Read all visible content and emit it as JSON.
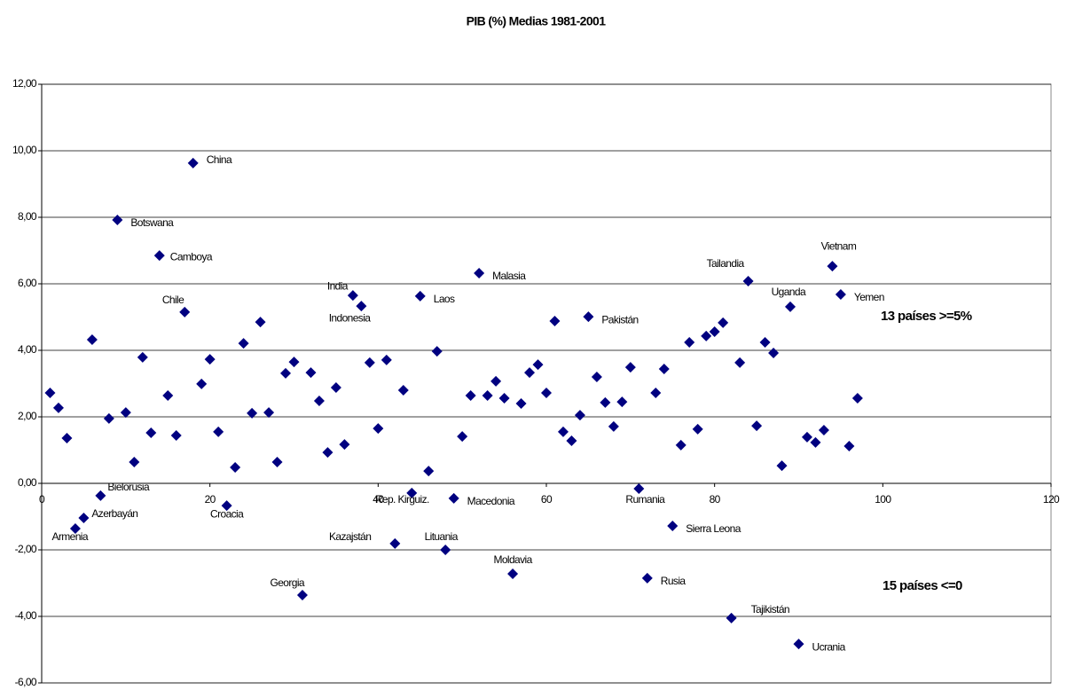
{
  "chart_data": {
    "type": "scatter",
    "title": "PIB (%) Medias 1981-2001",
    "color": "#000080",
    "grid": true,
    "xlim": [
      0,
      120
    ],
    "xticks": [
      0,
      20,
      40,
      60,
      80,
      100,
      120
    ],
    "ylim": [
      -6,
      12
    ],
    "yticks": [
      {
        "value": -6,
        "label": "-6,00"
      },
      {
        "value": -4,
        "label": "-4,00"
      },
      {
        "value": -2,
        "label": "-2,00"
      },
      {
        "value": 0,
        "label": "0,00"
      },
      {
        "value": 2,
        "label": "2,00"
      },
      {
        "value": 4,
        "label": "4,00"
      },
      {
        "value": 6,
        "label": "6,00"
      },
      {
        "value": 8,
        "label": "8,00"
      },
      {
        "value": 10,
        "label": "10,00"
      },
      {
        "value": 12,
        "label": "12,00"
      }
    ],
    "x": [
      1,
      2,
      3,
      4,
      5,
      6,
      7,
      8,
      9,
      10,
      11,
      12,
      13,
      14,
      15,
      16,
      17,
      18,
      19,
      20,
      21,
      22,
      23,
      24,
      25,
      26,
      27,
      28,
      29,
      30,
      31,
      32,
      33,
      34,
      35,
      36,
      37,
      38,
      39,
      40,
      41,
      42,
      43,
      44,
      45,
      46,
      47,
      48,
      49,
      50,
      51,
      52,
      53,
      54,
      55,
      56,
      57,
      58,
      59,
      60,
      61,
      62,
      63,
      64,
      65,
      66,
      67,
      68,
      69,
      70,
      71,
      72,
      73,
      74,
      75,
      76,
      77,
      78,
      79,
      80,
      81,
      82,
      83,
      84,
      85,
      86,
      87,
      88,
      89,
      90,
      91,
      92,
      93,
      94,
      95,
      96,
      97
    ],
    "values": [
      2.72,
      2.27,
      1.36,
      -1.36,
      -1.04,
      4.32,
      -0.37,
      1.95,
      7.92,
      2.13,
      0.64,
      3.79,
      1.52,
      6.85,
      2.64,
      1.44,
      5.15,
      9.63,
      2.99,
      3.73,
      1.55,
      -0.67,
      0.48,
      4.21,
      2.11,
      4.85,
      2.13,
      0.64,
      3.31,
      3.65,
      -3.36,
      3.33,
      2.48,
      0.93,
      2.88,
      1.17,
      5.65,
      5.33,
      3.63,
      1.65,
      3.71,
      -1.81,
      2.8,
      -0.29,
      5.63,
      0.37,
      3.97,
      -2.0,
      -0.45,
      1.41,
      2.64,
      6.32,
      2.64,
      3.07,
      2.56,
      -2.72,
      2.4,
      3.33,
      3.57,
      2.72,
      4.88,
      1.55,
      1.28,
      2.05,
      5.01,
      3.2,
      2.43,
      1.71,
      2.45,
      3.49,
      -0.16,
      -2.85,
      2.72,
      3.44,
      -1.28,
      1.15,
      4.24,
      1.63,
      4.43,
      4.56,
      4.83,
      -4.05,
      3.63,
      6.08,
      1.73,
      4.24,
      3.92,
      0.53,
      5.31,
      -4.83,
      1.39,
      1.23,
      1.6,
      6.53,
      5.68,
      1.12,
      2.56
    ],
    "point_labels": [
      null,
      null,
      null,
      "Armenia",
      "Azerbayán",
      null,
      "Bielorusia",
      null,
      "Botswana",
      null,
      null,
      null,
      null,
      "Camboya",
      null,
      null,
      "Chile",
      "China",
      null,
      null,
      null,
      "Croacia",
      null,
      null,
      null,
      null,
      null,
      null,
      null,
      null,
      "Georgia",
      null,
      null,
      null,
      null,
      null,
      "India",
      "Indonesia",
      null,
      null,
      null,
      "Kazajstán",
      null,
      "Rep. Kirguiz.",
      "Laos",
      null,
      null,
      "Lituania",
      "Macedonia",
      null,
      null,
      "Malasia",
      null,
      null,
      null,
      "Moldavia",
      null,
      null,
      null,
      null,
      null,
      null,
      null,
      null,
      "Pakistán",
      null,
      null,
      null,
      null,
      null,
      "Rumania",
      "Rusia",
      null,
      null,
      "Sierra Leona",
      null,
      null,
      null,
      null,
      null,
      null,
      "Tajikistán",
      null,
      "Tailandia",
      null,
      null,
      null,
      null,
      "Uganda",
      "Ucrania",
      null,
      null,
      null,
      "Vietnam",
      "Yemen",
      null,
      null
    ],
    "annotations": [
      "13 países >=5%",
      "15 países <=0"
    ]
  }
}
